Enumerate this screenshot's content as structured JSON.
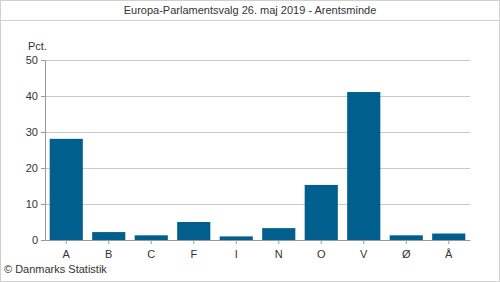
{
  "chart_data": {
    "type": "bar",
    "title": "Europa-Parlamentsvalg 26. maj 2019 - Arentsminde",
    "ylabel": "Pct.",
    "source": "© Danmarks Statistik",
    "categories": [
      "A",
      "B",
      "C",
      "F",
      "I",
      "N",
      "O",
      "V",
      "Ø",
      "Å"
    ],
    "values": [
      28.1,
      2.2,
      1.3,
      5.0,
      1.0,
      3.3,
      15.3,
      41.1,
      1.3,
      1.8
    ],
    "color": "#005f8c",
    "ylim": [
      0,
      50
    ],
    "yticks": [
      0,
      10,
      20,
      30,
      40,
      50
    ],
    "grid": true
  }
}
